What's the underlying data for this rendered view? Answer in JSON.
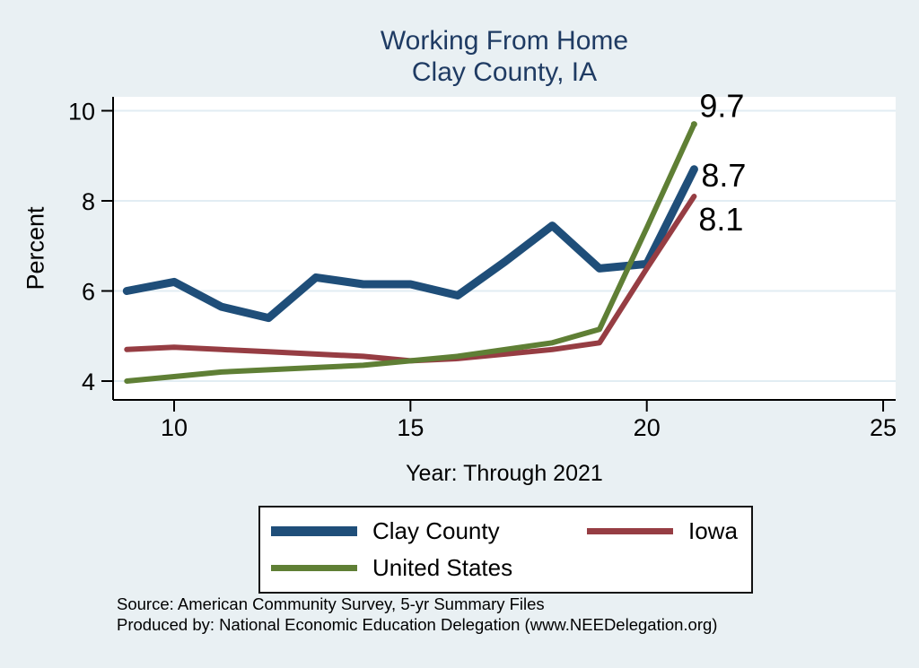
{
  "chart_data": {
    "type": "line",
    "title": "Working From Home",
    "subtitle": "Clay County, IA",
    "xlabel": "Year: Through 2021",
    "ylabel": "Percent",
    "x": [
      9,
      10,
      11,
      12,
      13,
      14,
      15,
      16,
      17,
      18,
      19,
      20,
      21
    ],
    "xticks": [
      10,
      15,
      20,
      25
    ],
    "yticks": [
      4,
      6,
      8,
      10
    ],
    "xlim": [
      8.7,
      25.3
    ],
    "ylim": [
      3.55,
      10.35
    ],
    "grid": "horizontal",
    "legend_position": "bottom",
    "series": [
      {
        "name": "Clay County",
        "color": "#1f4e79",
        "line_width": 9,
        "swatch_height": 11,
        "values": [
          6.0,
          6.2,
          5.65,
          5.4,
          6.3,
          6.15,
          6.15,
          5.9,
          6.65,
          7.45,
          6.5,
          6.6,
          8.7
        ],
        "end_label": "8.7",
        "label_dx": 8,
        "label_dy": 19,
        "end_marker": false
      },
      {
        "name": "Iowa",
        "color": "#963d43",
        "line_width": 6,
        "swatch_height": 7,
        "values": [
          4.7,
          4.75,
          4.7,
          4.65,
          4.6,
          4.55,
          4.45,
          4.5,
          4.6,
          4.7,
          4.85,
          6.5,
          8.1
        ],
        "end_label": "8.1",
        "label_dx": 5,
        "label_dy": 38,
        "end_marker": false
      },
      {
        "name": "United States",
        "color": "#5f7f35",
        "line_width": 6,
        "swatch_height": 7,
        "values": [
          4.0,
          4.1,
          4.2,
          4.25,
          4.3,
          4.35,
          4.45,
          4.55,
          4.7,
          4.85,
          5.15,
          7.4,
          9.7
        ],
        "end_label": "9.7",
        "label_dx": 6,
        "label_dy": -8,
        "end_marker": true
      }
    ],
    "colors": {
      "background": "#e9f0f3",
      "plot_background": "#ffffff",
      "gridline": "#e2edf3",
      "axis": "#000000",
      "title": "#1f3b63",
      "end_label_text": "#000000"
    }
  },
  "footer": {
    "source_line": "Source: American Community Survey, 5-yr Summary Files",
    "produced_line": "Produced by: National Economic Education Delegation (www.NEEDelegation.org)"
  }
}
